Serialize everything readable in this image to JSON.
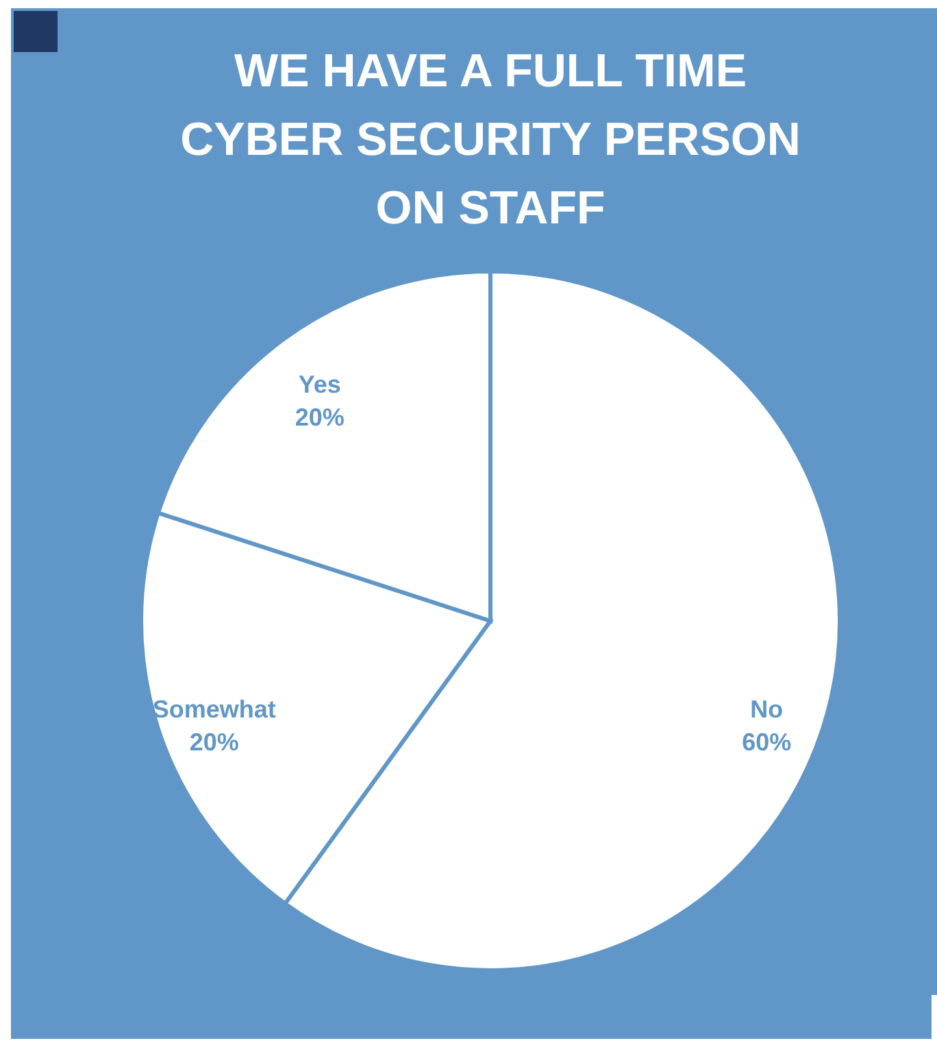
{
  "chart_data": {
    "type": "pie",
    "title": "WE HAVE A FULL TIME CYBER SECURITY PERSON ON STAFF",
    "categories": [
      "No",
      "Somewhat",
      "Yes"
    ],
    "values": [
      60,
      20,
      20
    ],
    "colors": [
      "#ffffff",
      "#ffffff",
      "#ffffff"
    ],
    "value_labels": [
      "60%",
      "20%",
      "20%"
    ]
  }
}
